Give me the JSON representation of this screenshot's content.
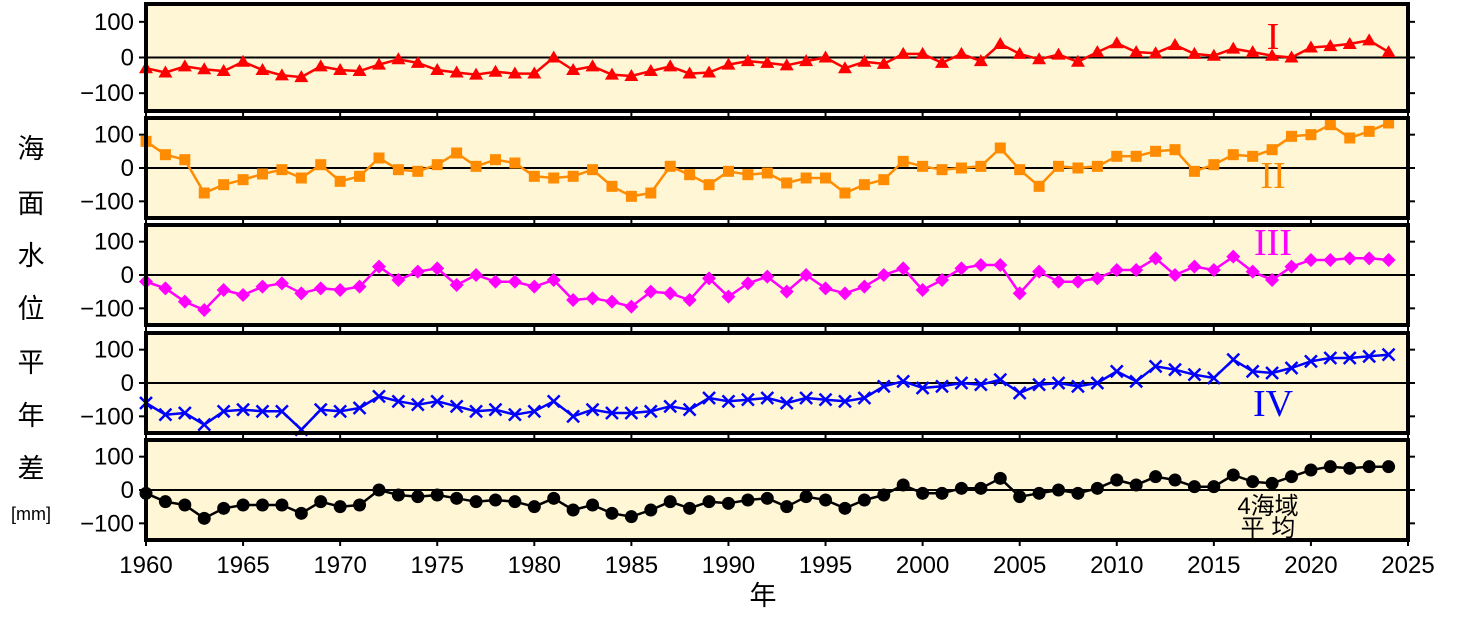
{
  "chart_data": {
    "type": "line",
    "ylabel_chars": [
      "海",
      "面",
      "水",
      "位",
      "平",
      "年",
      "差"
    ],
    "unit": "[mm]",
    "xlabel": "年",
    "xlim": [
      1960,
      2025
    ],
    "xticks": [
      1960,
      1965,
      1970,
      1975,
      1980,
      1985,
      1990,
      1995,
      2000,
      2005,
      2010,
      2015,
      2020,
      2025
    ],
    "ylim": [
      -150,
      150
    ],
    "yticks": [
      -100,
      0,
      100
    ],
    "ytick_labels": [
      "−100",
      "0",
      "100"
    ],
    "background": "#fff6d5",
    "x": [
      1960,
      1961,
      1962,
      1963,
      1964,
      1965,
      1966,
      1967,
      1968,
      1969,
      1970,
      1971,
      1972,
      1973,
      1974,
      1975,
      1976,
      1977,
      1978,
      1979,
      1980,
      1981,
      1982,
      1983,
      1984,
      1985,
      1986,
      1987,
      1988,
      1989,
      1990,
      1991,
      1992,
      1993,
      1994,
      1995,
      1996,
      1997,
      1998,
      1999,
      2000,
      2001,
      2002,
      2003,
      2004,
      2005,
      2006,
      2007,
      2008,
      2009,
      2010,
      2011,
      2012,
      2013,
      2014,
      2015,
      2016,
      2017,
      2018,
      2019,
      2020,
      2021,
      2022,
      2023,
      2024
    ],
    "panels": [
      {
        "name": "I",
        "label_lines": [
          "I"
        ],
        "color": "#ff0000",
        "marker": "triangle",
        "values": [
          -30,
          -42,
          -25,
          -33,
          -38,
          -12,
          -35,
          -50,
          -55,
          -25,
          -35,
          -38,
          -20,
          -5,
          -15,
          -35,
          -42,
          -48,
          -40,
          -45,
          -45,
          0,
          -35,
          -25,
          -48,
          -52,
          -38,
          -25,
          -45,
          -42,
          -20,
          -10,
          -15,
          -22,
          -10,
          0,
          -30,
          -12,
          -18,
          10,
          10,
          -15,
          10,
          -10,
          38,
          10,
          -5,
          8,
          -12,
          15,
          40,
          15,
          12,
          35,
          10,
          5,
          25,
          15,
          5,
          0,
          28,
          32,
          38,
          48,
          15
        ]
      },
      {
        "name": "II",
        "label_lines": [
          "II"
        ],
        "color": "#ff8c00",
        "marker": "square",
        "values": [
          80,
          40,
          25,
          -75,
          -50,
          -35,
          -18,
          -5,
          -30,
          10,
          -40,
          -25,
          30,
          -5,
          -10,
          10,
          45,
          5,
          25,
          15,
          -25,
          -30,
          -25,
          -5,
          -55,
          -85,
          -75,
          5,
          -20,
          -50,
          -10,
          -20,
          -15,
          -45,
          -30,
          -30,
          -75,
          -50,
          -35,
          20,
          5,
          -5,
          0,
          5,
          60,
          -5,
          -55,
          5,
          0,
          5,
          35,
          35,
          50,
          55,
          -10,
          10,
          40,
          35,
          55,
          95,
          100,
          130,
          90,
          110,
          135
        ]
      },
      {
        "name": "III",
        "label_lines": [
          "III"
        ],
        "color": "#ff00ff",
        "marker": "diamond",
        "values": [
          -20,
          -40,
          -80,
          -105,
          -45,
          -60,
          -35,
          -25,
          -55,
          -40,
          -45,
          -35,
          25,
          -15,
          10,
          20,
          -30,
          0,
          -20,
          -20,
          -35,
          -15,
          -75,
          -70,
          -80,
          -95,
          -50,
          -55,
          -75,
          -10,
          -65,
          -25,
          -5,
          -50,
          0,
          -40,
          -55,
          -35,
          0,
          20,
          -45,
          -15,
          20,
          30,
          30,
          -55,
          10,
          -20,
          -20,
          -10,
          15,
          15,
          50,
          0,
          25,
          15,
          55,
          10,
          -15,
          25,
          45,
          45,
          50,
          50,
          45
        ]
      },
      {
        "name": "IV",
        "label_lines": [
          "IV"
        ],
        "color": "#0000ff",
        "marker": "cross",
        "values": [
          -60,
          -95,
          -90,
          -125,
          -85,
          -80,
          -85,
          -85,
          -140,
          -80,
          -85,
          -75,
          -40,
          -55,
          -65,
          -55,
          -70,
          -85,
          -80,
          -95,
          -85,
          -55,
          -100,
          -80,
          -90,
          -90,
          -85,
          -70,
          -80,
          -45,
          -55,
          -50,
          -45,
          -60,
          -45,
          -50,
          -55,
          -45,
          -10,
          5,
          -15,
          -10,
          0,
          -5,
          10,
          -30,
          -5,
          0,
          -10,
          0,
          35,
          5,
          50,
          40,
          25,
          15,
          70,
          35,
          30,
          45,
          65,
          75,
          75,
          80,
          85
        ]
      },
      {
        "name": "avg",
        "label_lines": [
          "4海域",
          "平 均"
        ],
        "color": "#000000",
        "marker": "circle",
        "values": [
          -10,
          -35,
          -45,
          -85,
          -55,
          -45,
          -45,
          -45,
          -70,
          -35,
          -50,
          -45,
          0,
          -15,
          -20,
          -15,
          -25,
          -35,
          -30,
          -35,
          -50,
          -25,
          -60,
          -45,
          -70,
          -80,
          -60,
          -35,
          -55,
          -35,
          -40,
          -30,
          -25,
          -50,
          -20,
          -30,
          -55,
          -30,
          -15,
          15,
          -10,
          -10,
          5,
          5,
          35,
          -20,
          -10,
          0,
          -10,
          5,
          30,
          15,
          40,
          30,
          10,
          10,
          45,
          25,
          20,
          40,
          60,
          70,
          65,
          70,
          70
        ]
      }
    ]
  }
}
